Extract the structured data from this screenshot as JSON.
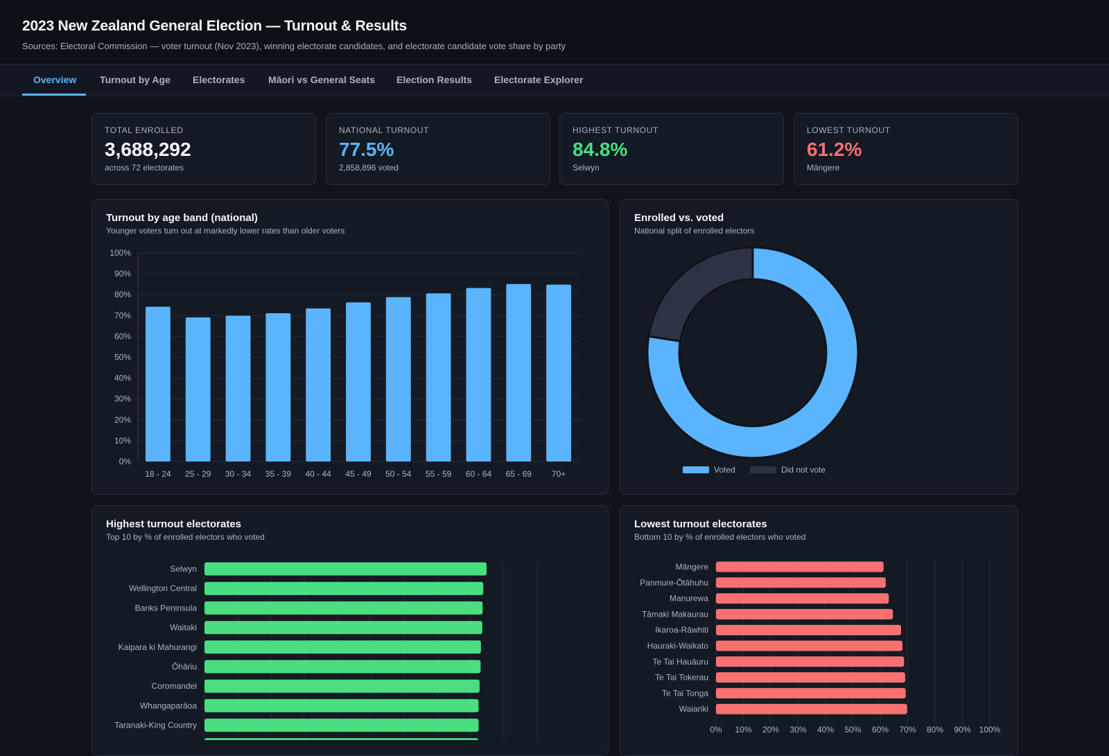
{
  "header": {
    "title": "2023 New Zealand General Election — Turnout & Results",
    "subtitle": "Sources: Electoral Commission — voter turnout (Nov 2023), winning electorate candidates, and electorate candidate vote share by party"
  },
  "tabs": [
    {
      "label": "Overview"
    },
    {
      "label": "Turnout by Age"
    },
    {
      "label": "Electorates"
    },
    {
      "label": "Māori vs General Seats"
    },
    {
      "label": "Election Results"
    },
    {
      "label": "Electorate Explorer"
    }
  ],
  "stats": [
    {
      "label": "TOTAL ENROLLED",
      "value": "3,688,292",
      "sub": "across 72 electorates",
      "color": "#f3f5f9"
    },
    {
      "label": "NATIONAL TURNOUT",
      "value": "77.5%",
      "sub": "2,858,896 voted",
      "color": "#5ab4ff"
    },
    {
      "label": "HIGHEST TURNOUT",
      "value": "84.8%",
      "sub": "Selwyn",
      "color": "#4ade80"
    },
    {
      "label": "LOWEST TURNOUT",
      "value": "61.2%",
      "sub": "Māngere",
      "color": "#f87171"
    }
  ],
  "panels": {
    "age": {
      "title": "Turnout by age band (national)",
      "subtitle": "Younger voters turn out at markedly lower rates than older voters"
    },
    "donut": {
      "title": "Enrolled vs. voted",
      "subtitle": "National split of enrolled electors"
    },
    "highest": {
      "title": "Highest turnout electorates",
      "subtitle": "Top 10 by % of enrolled electors who voted"
    },
    "lowest": {
      "title": "Lowest turnout electorates",
      "subtitle": "Bottom 10 by % of enrolled electors who voted"
    }
  },
  "colors": {
    "bar": "#5ab4ff",
    "green": "#4ade80",
    "red": "#f87171",
    "not_voted": "#2b3344",
    "grid": "#222a37",
    "axis_text": "#aab3c2"
  },
  "chart_data": [
    {
      "type": "bar",
      "title": "Turnout by age band (national)",
      "categories": [
        "18 - 24",
        "25 - 29",
        "30 - 34",
        "35 - 39",
        "40 - 44",
        "45 - 49",
        "50 - 54",
        "55 - 59",
        "60 - 64",
        "65 - 69",
        "70+"
      ],
      "values": [
        74.2,
        69.1,
        69.9,
        71.1,
        73.4,
        76.3,
        78.8,
        80.6,
        83.2,
        85.1,
        84.8
      ],
      "ylim": [
        0,
        100
      ],
      "yticks": [
        "0%",
        "10%",
        "20%",
        "30%",
        "40%",
        "50%",
        "60%",
        "70%",
        "80%",
        "90%",
        "100%"
      ],
      "grid": true
    },
    {
      "type": "pie",
      "title": "Enrolled vs. voted",
      "labels": [
        "Voted",
        "Did not vote"
      ],
      "values": [
        77.5,
        22.5
      ],
      "legend": "bottom"
    },
    {
      "type": "bar",
      "orientation": "horizontal",
      "title": "Highest turnout electorates",
      "categories": [
        "Selwyn",
        "Wellington Central",
        "Banks Peninsula",
        "Waitaki",
        "Kaipara ki Mahurangi",
        "Ōhāriu",
        "Coromandel",
        "Whangaparāoa",
        "Taranaki-King Country",
        ""
      ],
      "values": [
        84.8,
        83.8,
        83.6,
        83.5,
        83.1,
        83.0,
        82.7,
        82.4,
        82.4,
        82.3
      ],
      "xlim": [
        0,
        100
      ],
      "grid": true
    },
    {
      "type": "bar",
      "orientation": "horizontal",
      "title": "Lowest turnout electorates",
      "categories": [
        "Māngere",
        "Panmure-Ōtāhuhu",
        "Manurewa",
        "Tāmaki Makaurau",
        "Ikaroa-Rāwhiti",
        "Hauraki-Waikato",
        "Te Tai Hauāuru",
        "Te Tai Tokerau",
        "Te Tai Tonga",
        "Waiariki"
      ],
      "values": [
        61.2,
        62.0,
        63.1,
        64.6,
        67.6,
        68.1,
        68.7,
        69.1,
        69.3,
        69.8
      ],
      "xlim": [
        0,
        100
      ],
      "xticks": [
        "0%",
        "10%",
        "20%",
        "30%",
        "40%",
        "50%",
        "60%",
        "70%",
        "80%",
        "90%",
        "100%"
      ],
      "grid": true
    }
  ]
}
